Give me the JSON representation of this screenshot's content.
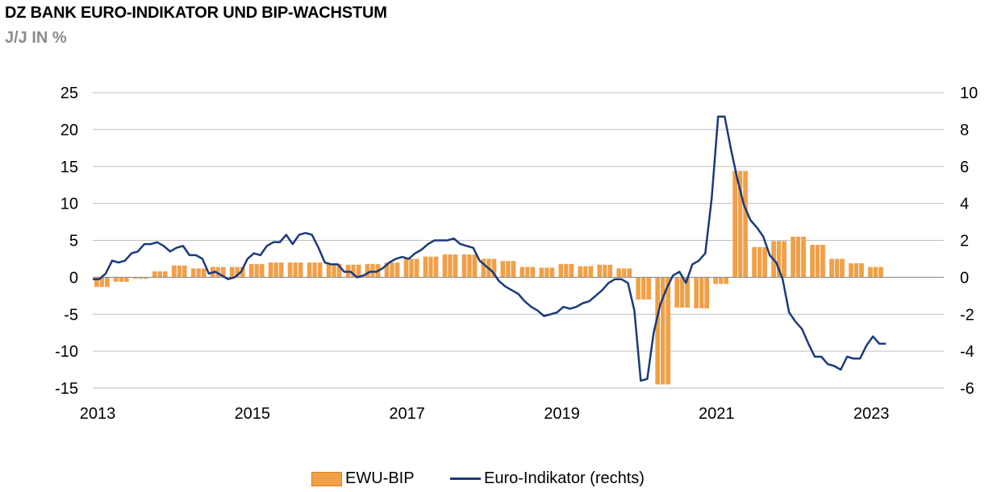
{
  "header": {
    "title": "DZ BANK EURO-INDIKATOR UND BIP-WACHSTUM",
    "subtitle": "J/J IN %"
  },
  "legend": {
    "bar_label": "EWU-BIP",
    "line_label": "Euro-Indikator (rechts)"
  },
  "colors": {
    "bar_fill": "#f0a048",
    "bar_stroke": "#e07e12",
    "line": "#1a3a7c",
    "grid": "#bfbfbf"
  },
  "chart_data": {
    "type": "bar+line",
    "title": "DZ BANK EURO-INDIKATOR UND BIP-WACHSTUM",
    "subtitle": "J/J IN %",
    "x_ticks": [
      "2013",
      "2015",
      "2017",
      "2019",
      "2021",
      "2023"
    ],
    "x_range": [
      2013,
      2024
    ],
    "y_left_ticks": [
      "25",
      "20",
      "15",
      "10",
      "5",
      "0",
      "-5",
      "-10",
      "-15"
    ],
    "y_left_range": [
      -15,
      25
    ],
    "y_right_ticks": [
      "10",
      "8",
      "6",
      "4",
      "2",
      "0",
      "-2",
      "-4",
      "-6"
    ],
    "y_right_range": [
      -6,
      10
    ],
    "grid": true,
    "legend_position": "bottom",
    "series": [
      {
        "name": "EWU-BIP",
        "kind": "bar",
        "axis": "left",
        "x": [
          2013.0,
          2013.25,
          2013.5,
          2013.75,
          2014.0,
          2014.25,
          2014.5,
          2014.75,
          2015.0,
          2015.25,
          2015.5,
          2015.75,
          2016.0,
          2016.25,
          2016.5,
          2016.75,
          2017.0,
          2017.25,
          2017.5,
          2017.75,
          2018.0,
          2018.25,
          2018.5,
          2018.75,
          2019.0,
          2019.25,
          2019.5,
          2019.75,
          2020.0,
          2020.25,
          2020.5,
          2020.75,
          2021.0,
          2021.25,
          2021.5,
          2021.75,
          2022.0,
          2022.25,
          2022.5,
          2022.75,
          2023.0
        ],
        "values": [
          -1.3,
          -0.6,
          -0.2,
          0.8,
          1.6,
          1.2,
          1.4,
          1.4,
          1.8,
          2.0,
          2.0,
          2.0,
          1.8,
          1.7,
          1.8,
          2.0,
          2.5,
          2.8,
          3.1,
          3.1,
          2.5,
          2.2,
          1.4,
          1.3,
          1.8,
          1.5,
          1.7,
          1.2,
          -3.0,
          -14.5,
          -4.1,
          -4.2,
          -0.9,
          14.4,
          4.1,
          4.9,
          5.5,
          4.4,
          2.5,
          1.9,
          1.4
        ]
      },
      {
        "name": "Euro-Indikator (rechts)",
        "kind": "line",
        "axis": "right",
        "x": [
          2013.0,
          2013.083,
          2013.167,
          2013.25,
          2013.333,
          2013.417,
          2013.5,
          2013.583,
          2013.667,
          2013.75,
          2013.833,
          2013.917,
          2014.0,
          2014.083,
          2014.167,
          2014.25,
          2014.333,
          2014.417,
          2014.5,
          2014.583,
          2014.667,
          2014.75,
          2014.833,
          2014.917,
          2015.0,
          2015.083,
          2015.167,
          2015.25,
          2015.333,
          2015.417,
          2015.5,
          2015.583,
          2015.667,
          2015.75,
          2015.833,
          2015.917,
          2016.0,
          2016.083,
          2016.167,
          2016.25,
          2016.333,
          2016.417,
          2016.5,
          2016.583,
          2016.667,
          2016.75,
          2016.833,
          2016.917,
          2017.0,
          2017.083,
          2017.167,
          2017.25,
          2017.333,
          2017.417,
          2017.5,
          2017.583,
          2017.667,
          2017.75,
          2017.833,
          2017.917,
          2018.0,
          2018.083,
          2018.167,
          2018.25,
          2018.333,
          2018.417,
          2018.5,
          2018.583,
          2018.667,
          2018.75,
          2018.833,
          2018.917,
          2019.0,
          2019.083,
          2019.167,
          2019.25,
          2019.333,
          2019.417,
          2019.5,
          2019.583,
          2019.667,
          2019.75,
          2019.833,
          2019.917,
          2020.0,
          2020.083,
          2020.167,
          2020.25,
          2020.333,
          2020.417,
          2020.5,
          2020.583,
          2020.667,
          2020.75,
          2020.833,
          2020.917,
          2021.0,
          2021.083,
          2021.167,
          2021.25,
          2021.333,
          2021.417,
          2021.5,
          2021.583,
          2021.667,
          2021.75,
          2021.833,
          2021.917,
          2022.0,
          2022.083,
          2022.167,
          2022.25,
          2022.333,
          2022.417,
          2022.5,
          2022.583,
          2022.667,
          2022.75,
          2022.833,
          2022.917,
          2023.0,
          2023.083,
          2023.167,
          2023.25
        ],
        "values": [
          -0.1,
          -0.1,
          0.2,
          0.9,
          0.8,
          0.9,
          1.3,
          1.4,
          1.8,
          1.8,
          1.9,
          1.7,
          1.4,
          1.6,
          1.7,
          1.2,
          1.2,
          1.0,
          0.2,
          0.3,
          0.1,
          -0.1,
          0.0,
          0.3,
          1.0,
          1.3,
          1.2,
          1.7,
          1.9,
          1.9,
          2.3,
          1.8,
          2.3,
          2.4,
          2.3,
          1.6,
          0.8,
          0.7,
          0.7,
          0.3,
          0.3,
          0.0,
          0.1,
          0.3,
          0.3,
          0.5,
          0.8,
          1.0,
          1.1,
          1.0,
          1.3,
          1.5,
          1.8,
          2.0,
          2.0,
          2.0,
          2.1,
          1.8,
          1.7,
          1.6,
          0.9,
          0.6,
          0.3,
          -0.2,
          -0.5,
          -0.7,
          -0.9,
          -1.3,
          -1.6,
          -1.8,
          -2.1,
          -2.0,
          -1.9,
          -1.6,
          -1.7,
          -1.6,
          -1.4,
          -1.3,
          -1.0,
          -0.7,
          -0.3,
          -0.1,
          -0.1,
          -0.3,
          -1.8,
          -5.6,
          -5.5,
          -3.0,
          -1.5,
          -0.6,
          0.1,
          0.3,
          -0.3,
          0.7,
          0.9,
          1.3,
          4.3,
          8.7,
          8.7,
          6.9,
          5.3,
          3.9,
          3.1,
          2.7,
          2.2,
          1.2,
          0.8,
          -0.1,
          -1.9,
          -2.4,
          -2.8,
          -3.6,
          -4.3,
          -4.3,
          -4.7,
          -4.8,
          -5.0,
          -4.3,
          -4.4,
          -4.4,
          -3.7,
          -3.2,
          -3.6,
          -3.6
        ]
      }
    ]
  }
}
